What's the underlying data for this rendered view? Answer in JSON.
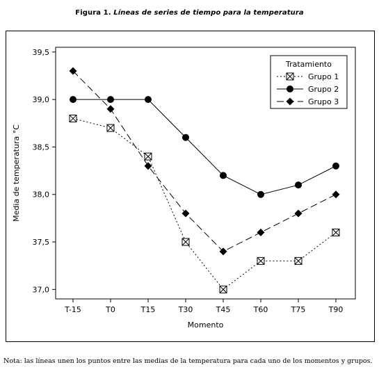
{
  "caption": {
    "figure_label": "Figura 1.",
    "title": "Líneas de series de tiempo para la temperatura"
  },
  "note": "Nota: las líneas unen los puntos entre las medias de la temperatura para cada uno de los momentos y grupos.",
  "chart_data": {
    "type": "line",
    "title": "",
    "xlabel": "Momento",
    "ylabel": "Media de temperatura °C",
    "categories": [
      "T-15",
      "T0",
      "T15",
      "T30",
      "T45",
      "T60",
      "T75",
      "T90"
    ],
    "ylim": [
      36.9,
      39.55
    ],
    "yticks": [
      "37,0",
      "37,5",
      "38,0",
      "38,5",
      "39,0",
      "39,5"
    ],
    "grid": false,
    "legend": {
      "title": "Tratamiento",
      "placement": "top-right"
    },
    "series": [
      {
        "name": "Grupo 1",
        "marker": "boxed-x",
        "line": "dotted",
        "values": [
          38.8,
          38.7,
          38.4,
          37.5,
          37.0,
          37.3,
          37.3,
          37.6
        ]
      },
      {
        "name": "Grupo 2",
        "marker": "circle",
        "line": "solid",
        "values": [
          39.0,
          39.0,
          39.0,
          38.6,
          38.2,
          38.0,
          38.1,
          38.3
        ]
      },
      {
        "name": "Grupo 3",
        "marker": "diamond",
        "line": "dashed",
        "values": [
          39.3,
          38.9,
          38.3,
          37.8,
          37.4,
          37.6,
          37.8,
          38.0
        ]
      }
    ]
  }
}
